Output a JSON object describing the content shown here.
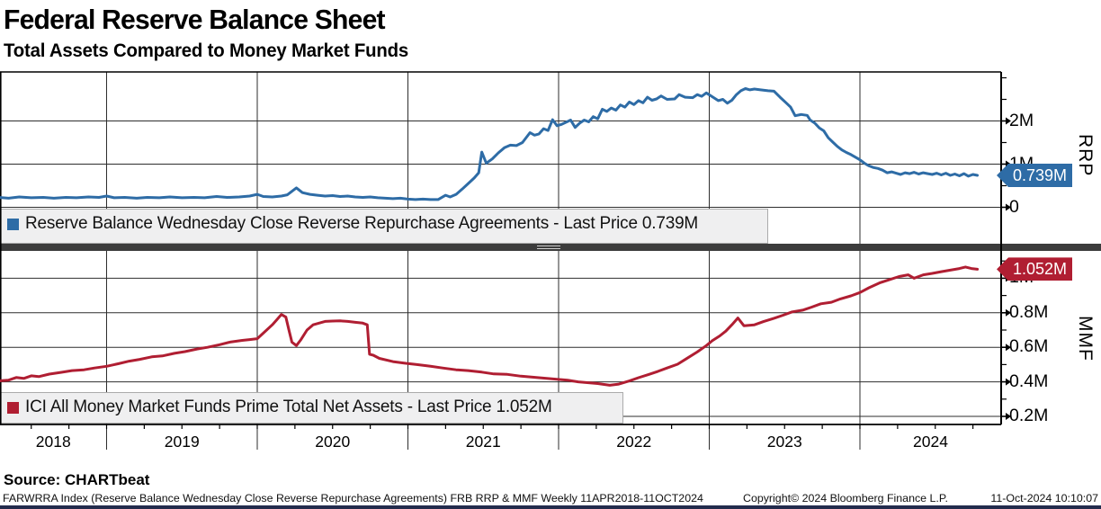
{
  "header": {
    "title": "Federal Reserve Balance Sheet",
    "subtitle": "Total Assets Compared to Money Market Funds"
  },
  "colors": {
    "rrp_line": "#2e6ca6",
    "rrp_badge_border": "#17476f",
    "mmf_line": "#b01e32",
    "mmf_badge_border": "#6f0f1e",
    "grid": "#2e2e2e",
    "border": "#000000",
    "separator": "#3c3c3c",
    "legend_bg": "#efeff0",
    "legend_border": "#ababab",
    "bottom_strip": "#232c4d"
  },
  "panels": {
    "rrp": {
      "axis_label": "RRP",
      "legend_label": "Reserve Balance Wednesday Close Reverse Repurchase Agreements - Last Price 0.739M",
      "badge": "0.739M",
      "ticks_major": [
        {
          "v": 0,
          "label": "0"
        },
        {
          "v": 1,
          "label": "1M"
        },
        {
          "v": 2,
          "label": "2M"
        }
      ],
      "ticks_minor": [
        0.5,
        1.5,
        2.5,
        3.0
      ]
    },
    "mmf": {
      "axis_label": "MMF",
      "legend_label": "ICI All Money Market Funds Prime Total Net Assets - Last Price 1.052M",
      "badge": "1.052M",
      "ticks_major": [
        {
          "v": 0.2,
          "label": "0.2M"
        },
        {
          "v": 0.4,
          "label": "0.4M"
        },
        {
          "v": 0.6,
          "label": "0.6M"
        },
        {
          "v": 0.8,
          "label": "0.8M"
        },
        {
          "v": 1.0,
          "label": "1M"
        }
      ],
      "ticks_minor": [
        0.3,
        0.5,
        0.7,
        0.9,
        1.1
      ]
    }
  },
  "x_axis": {
    "years": [
      "2018",
      "2019",
      "2020",
      "2021",
      "2022",
      "2023",
      "2024"
    ]
  },
  "footer": {
    "source": "Source: CHARTbeat",
    "left": "FARWRRA Index (Reserve Balance Wednesday Close Reverse Repurchase Agreements) FRB RRP & MMF  Weekly 11APR2018-11OCT2024",
    "copyright": "Copyright© 2024 Bloomberg Finance L.P.",
    "timestamp": "11-Oct-2024 10:10:07"
  },
  "chart_data": [
    {
      "type": "line",
      "name": "Reserve Balance Wednesday Close Reverse Repurchase Agreements",
      "panel": "rrp",
      "unit": "M",
      "ylim": [
        0,
        3.1
      ],
      "x_range": [
        2018.28,
        2024.78
      ],
      "last_price": 0.739,
      "points": [
        [
          2018.28,
          0.23
        ],
        [
          2018.35,
          0.21
        ],
        [
          2018.42,
          0.24
        ],
        [
          2018.5,
          0.22
        ],
        [
          2018.58,
          0.23
        ],
        [
          2018.65,
          0.21
        ],
        [
          2018.73,
          0.23
        ],
        [
          2018.8,
          0.22
        ],
        [
          2018.88,
          0.24
        ],
        [
          2018.95,
          0.23
        ],
        [
          2019.0,
          0.26
        ],
        [
          2019.05,
          0.22
        ],
        [
          2019.12,
          0.23
        ],
        [
          2019.2,
          0.21
        ],
        [
          2019.27,
          0.23
        ],
        [
          2019.35,
          0.22
        ],
        [
          2019.42,
          0.24
        ],
        [
          2019.5,
          0.22
        ],
        [
          2019.58,
          0.23
        ],
        [
          2019.65,
          0.22
        ],
        [
          2019.73,
          0.25
        ],
        [
          2019.8,
          0.23
        ],
        [
          2019.88,
          0.24
        ],
        [
          2019.95,
          0.26
        ],
        [
          2020.0,
          0.3
        ],
        [
          2020.04,
          0.25
        ],
        [
          2020.1,
          0.24
        ],
        [
          2020.16,
          0.26
        ],
        [
          2020.2,
          0.29
        ],
        [
          2020.26,
          0.45
        ],
        [
          2020.3,
          0.34
        ],
        [
          2020.35,
          0.3
        ],
        [
          2020.4,
          0.28
        ],
        [
          2020.45,
          0.26
        ],
        [
          2020.5,
          0.27
        ],
        [
          2020.55,
          0.25
        ],
        [
          2020.6,
          0.26
        ],
        [
          2020.65,
          0.24
        ],
        [
          2020.7,
          0.23
        ],
        [
          2020.75,
          0.24
        ],
        [
          2020.8,
          0.22
        ],
        [
          2020.85,
          0.21
        ],
        [
          2020.9,
          0.2
        ],
        [
          2020.95,
          0.21
        ],
        [
          2021.0,
          0.19
        ],
        [
          2021.05,
          0.18
        ],
        [
          2021.1,
          0.19
        ],
        [
          2021.15,
          0.18
        ],
        [
          2021.2,
          0.18
        ],
        [
          2021.25,
          0.28
        ],
        [
          2021.28,
          0.24
        ],
        [
          2021.32,
          0.3
        ],
        [
          2021.36,
          0.42
        ],
        [
          2021.4,
          0.55
        ],
        [
          2021.44,
          0.68
        ],
        [
          2021.47,
          0.8
        ],
        [
          2021.49,
          1.28
        ],
        [
          2021.52,
          1.02
        ],
        [
          2021.56,
          1.12
        ],
        [
          2021.6,
          1.26
        ],
        [
          2021.64,
          1.38
        ],
        [
          2021.68,
          1.44
        ],
        [
          2021.72,
          1.43
        ],
        [
          2021.76,
          1.5
        ],
        [
          2021.81,
          1.73
        ],
        [
          2021.84,
          1.67
        ],
        [
          2021.87,
          1.7
        ],
        [
          2021.9,
          1.82
        ],
        [
          2021.93,
          1.78
        ],
        [
          2021.96,
          2.03
        ],
        [
          2021.99,
          1.89
        ],
        [
          2022.02,
          1.92
        ],
        [
          2022.08,
          2.02
        ],
        [
          2022.11,
          1.85
        ],
        [
          2022.14,
          1.95
        ],
        [
          2022.17,
          2.02
        ],
        [
          2022.2,
          1.98
        ],
        [
          2022.23,
          2.1
        ],
        [
          2022.26,
          2.05
        ],
        [
          2022.29,
          2.27
        ],
        [
          2022.32,
          2.22
        ],
        [
          2022.35,
          2.3
        ],
        [
          2022.38,
          2.25
        ],
        [
          2022.41,
          2.37
        ],
        [
          2022.44,
          2.32
        ],
        [
          2022.47,
          2.44
        ],
        [
          2022.5,
          2.38
        ],
        [
          2022.53,
          2.47
        ],
        [
          2022.56,
          2.42
        ],
        [
          2022.59,
          2.55
        ],
        [
          2022.62,
          2.48
        ],
        [
          2022.65,
          2.51
        ],
        [
          2022.68,
          2.58
        ],
        [
          2022.72,
          2.5
        ],
        [
          2022.77,
          2.51
        ],
        [
          2022.8,
          2.61
        ],
        [
          2022.84,
          2.55
        ],
        [
          2022.89,
          2.54
        ],
        [
          2022.92,
          2.61
        ],
        [
          2022.95,
          2.57
        ],
        [
          2022.98,
          2.65
        ],
        [
          2023.03,
          2.54
        ],
        [
          2023.06,
          2.47
        ],
        [
          2023.09,
          2.5
        ],
        [
          2023.12,
          2.41
        ],
        [
          2023.15,
          2.48
        ],
        [
          2023.18,
          2.61
        ],
        [
          2023.21,
          2.7
        ],
        [
          2023.24,
          2.75
        ],
        [
          2023.27,
          2.72
        ],
        [
          2023.3,
          2.74
        ],
        [
          2023.34,
          2.72
        ],
        [
          2023.39,
          2.7
        ],
        [
          2023.43,
          2.69
        ],
        [
          2023.47,
          2.55
        ],
        [
          2023.51,
          2.42
        ],
        [
          2023.54,
          2.32
        ],
        [
          2023.57,
          2.12
        ],
        [
          2023.61,
          2.15
        ],
        [
          2023.65,
          2.13
        ],
        [
          2023.67,
          2.02
        ],
        [
          2023.7,
          1.95
        ],
        [
          2023.73,
          1.84
        ],
        [
          2023.76,
          1.77
        ],
        [
          2023.79,
          1.61
        ],
        [
          2023.82,
          1.51
        ],
        [
          2023.85,
          1.41
        ],
        [
          2023.88,
          1.33
        ],
        [
          2023.91,
          1.27
        ],
        [
          2023.94,
          1.22
        ],
        [
          2023.97,
          1.16
        ],
        [
          2024.0,
          1.1
        ],
        [
          2024.03,
          1.02
        ],
        [
          2024.06,
          0.96
        ],
        [
          2024.09,
          0.92
        ],
        [
          2024.12,
          0.9
        ],
        [
          2024.15,
          0.86
        ],
        [
          2024.18,
          0.8
        ],
        [
          2024.21,
          0.82
        ],
        [
          2024.24,
          0.79
        ],
        [
          2024.27,
          0.76
        ],
        [
          2024.3,
          0.8
        ],
        [
          2024.33,
          0.78
        ],
        [
          2024.36,
          0.81
        ],
        [
          2024.39,
          0.77
        ],
        [
          2024.42,
          0.8
        ],
        [
          2024.45,
          0.78
        ],
        [
          2024.48,
          0.76
        ],
        [
          2024.51,
          0.79
        ],
        [
          2024.54,
          0.75
        ],
        [
          2024.57,
          0.79
        ],
        [
          2024.6,
          0.74
        ],
        [
          2024.63,
          0.77
        ],
        [
          2024.66,
          0.73
        ],
        [
          2024.69,
          0.78
        ],
        [
          2024.72,
          0.72
        ],
        [
          2024.75,
          0.76
        ],
        [
          2024.78,
          0.739
        ]
      ]
    },
    {
      "type": "line",
      "name": "ICI All Money Market Funds Prime Total Net Assets",
      "panel": "mmf",
      "unit": "M",
      "ylim": [
        0.15,
        1.15
      ],
      "x_range": [
        2018.28,
        2024.78
      ],
      "last_price": 1.052,
      "points": [
        [
          2018.28,
          0.405
        ],
        [
          2018.35,
          0.41
        ],
        [
          2018.4,
          0.425
        ],
        [
          2018.45,
          0.42
        ],
        [
          2018.5,
          0.435
        ],
        [
          2018.55,
          0.43
        ],
        [
          2018.62,
          0.445
        ],
        [
          2018.7,
          0.455
        ],
        [
          2018.77,
          0.465
        ],
        [
          2018.85,
          0.47
        ],
        [
          2018.92,
          0.48
        ],
        [
          2019.0,
          0.49
        ],
        [
          2019.08,
          0.505
        ],
        [
          2019.15,
          0.52
        ],
        [
          2019.22,
          0.53
        ],
        [
          2019.3,
          0.545
        ],
        [
          2019.37,
          0.55
        ],
        [
          2019.45,
          0.565
        ],
        [
          2019.52,
          0.575
        ],
        [
          2019.6,
          0.59
        ],
        [
          2019.67,
          0.6
        ],
        [
          2019.75,
          0.615
        ],
        [
          2019.82,
          0.63
        ],
        [
          2019.9,
          0.64
        ],
        [
          2019.95,
          0.645
        ],
        [
          2020.0,
          0.65
        ],
        [
          2020.05,
          0.69
        ],
        [
          2020.1,
          0.73
        ],
        [
          2020.13,
          0.76
        ],
        [
          2020.16,
          0.79
        ],
        [
          2020.19,
          0.775
        ],
        [
          2020.21,
          0.7
        ],
        [
          2020.23,
          0.63
        ],
        [
          2020.26,
          0.61
        ],
        [
          2020.29,
          0.645
        ],
        [
          2020.33,
          0.7
        ],
        [
          2020.37,
          0.73
        ],
        [
          2020.41,
          0.74
        ],
        [
          2020.45,
          0.75
        ],
        [
          2020.5,
          0.752
        ],
        [
          2020.55,
          0.753
        ],
        [
          2020.6,
          0.75
        ],
        [
          2020.65,
          0.745
        ],
        [
          2020.7,
          0.74
        ],
        [
          2020.73,
          0.73
        ],
        [
          2020.745,
          0.56
        ],
        [
          2020.77,
          0.554
        ],
        [
          2020.81,
          0.536
        ],
        [
          2020.9,
          0.517
        ],
        [
          2020.98,
          0.508
        ],
        [
          2021.06,
          0.5
        ],
        [
          2021.15,
          0.49
        ],
        [
          2021.23,
          0.48
        ],
        [
          2021.32,
          0.47
        ],
        [
          2021.4,
          0.465
        ],
        [
          2021.49,
          0.456
        ],
        [
          2021.57,
          0.446
        ],
        [
          2021.66,
          0.443
        ],
        [
          2021.75,
          0.433
        ],
        [
          2021.87,
          0.424
        ],
        [
          2021.99,
          0.415
        ],
        [
          2022.06,
          0.41
        ],
        [
          2022.13,
          0.4
        ],
        [
          2022.26,
          0.39
        ],
        [
          2022.34,
          0.38
        ],
        [
          2022.4,
          0.387
        ],
        [
          2022.47,
          0.405
        ],
        [
          2022.53,
          0.424
        ],
        [
          2022.6,
          0.443
        ],
        [
          2022.66,
          0.461
        ],
        [
          2022.72,
          0.48
        ],
        [
          2022.79,
          0.502
        ],
        [
          2022.85,
          0.535
        ],
        [
          2022.92,
          0.573
        ],
        [
          2022.98,
          0.61
        ],
        [
          2023.02,
          0.638
        ],
        [
          2023.07,
          0.666
        ],
        [
          2023.11,
          0.694
        ],
        [
          2023.15,
          0.73
        ],
        [
          2023.19,
          0.77
        ],
        [
          2023.23,
          0.725
        ],
        [
          2023.3,
          0.73
        ],
        [
          2023.36,
          0.749
        ],
        [
          2023.43,
          0.768
        ],
        [
          2023.49,
          0.786
        ],
        [
          2023.55,
          0.805
        ],
        [
          2023.62,
          0.815
        ],
        [
          2023.68,
          0.833
        ],
        [
          2023.74,
          0.852
        ],
        [
          2023.81,
          0.861
        ],
        [
          2023.87,
          0.88
        ],
        [
          2023.94,
          0.898
        ],
        [
          2024.0,
          0.917
        ],
        [
          2024.06,
          0.945
        ],
        [
          2024.13,
          0.973
        ],
        [
          2024.19,
          0.99
        ],
        [
          2024.26,
          1.01
        ],
        [
          2024.32,
          1.02
        ],
        [
          2024.36,
          1.0
        ],
        [
          2024.42,
          1.02
        ],
        [
          2024.48,
          1.028
        ],
        [
          2024.54,
          1.038
        ],
        [
          2024.6,
          1.047
        ],
        [
          2024.66,
          1.056
        ],
        [
          2024.7,
          1.065
        ],
        [
          2024.74,
          1.056
        ],
        [
          2024.78,
          1.052
        ]
      ]
    }
  ]
}
